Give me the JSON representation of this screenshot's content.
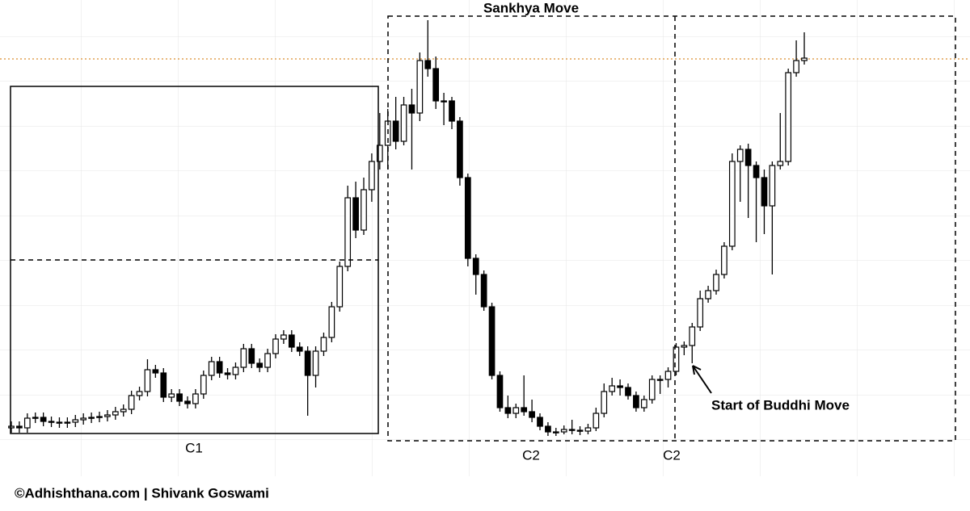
{
  "chart_data": {
    "type": "candlestick",
    "title": "Sankhya Move",
    "up_color": "#ffffff",
    "down_color": "#000000",
    "edge_color": "#000000",
    "ylim": [
      0,
      550
    ],
    "price_line": {
      "value": 477,
      "color": "#e0a050"
    },
    "open": [
      20,
      22,
      20,
      32,
      33,
      28,
      27,
      26,
      27,
      30,
      32,
      33,
      34,
      36,
      40,
      43,
      60,
      65,
      92,
      88,
      58,
      62,
      53,
      50,
      62,
      85,
      102,
      88,
      86,
      95,
      118,
      100,
      95,
      112,
      130,
      135,
      120,
      115,
      85,
      115,
      132,
      170,
      220,
      305,
      265,
      315,
      350,
      370,
      400,
      375,
      420,
      410,
      475,
      465,
      425,
      425,
      400,
      330,
      230,
      210,
      170,
      85,
      45,
      38,
      45,
      40,
      33,
      22,
      15,
      15,
      18,
      17,
      16,
      20,
      38,
      65,
      72,
      70,
      60,
      45,
      55,
      80,
      80,
      90,
      120,
      122,
      145,
      180,
      190,
      210,
      245,
      350,
      365,
      345,
      330,
      295,
      345,
      350,
      460,
      475
    ],
    "high": [
      28,
      28,
      38,
      39,
      39,
      34,
      33,
      33,
      36,
      38,
      39,
      40,
      42,
      46,
      49,
      66,
      71,
      105,
      98,
      94,
      68,
      68,
      59,
      68,
      91,
      108,
      108,
      94,
      101,
      124,
      124,
      106,
      118,
      136,
      141,
      141,
      126,
      121,
      121,
      138,
      176,
      226,
      320,
      325,
      330,
      360,
      410,
      415,
      430,
      430,
      440,
      485,
      525,
      480,
      435,
      430,
      405,
      335,
      235,
      215,
      175,
      90,
      60,
      50,
      85,
      55,
      38,
      27,
      20,
      23,
      30,
      22,
      25,
      45,
      75,
      82,
      80,
      75,
      65,
      60,
      85,
      85,
      95,
      125,
      127,
      150,
      190,
      196,
      216,
      250,
      360,
      370,
      372,
      350,
      340,
      350,
      410,
      465,
      500,
      510
    ],
    "low": [
      14,
      14,
      14,
      26,
      22,
      21,
      20,
      20,
      21,
      24,
      26,
      27,
      28,
      30,
      34,
      37,
      54,
      59,
      82,
      52,
      52,
      47,
      44,
      44,
      56,
      79,
      82,
      80,
      80,
      89,
      94,
      89,
      89,
      106,
      124,
      114,
      109,
      35,
      70,
      109,
      126,
      164,
      214,
      255,
      259,
      300,
      340,
      340,
      365,
      370,
      340,
      400,
      455,
      415,
      395,
      390,
      320,
      220,
      185,
      165,
      80,
      40,
      32,
      32,
      35,
      27,
      17,
      10,
      10,
      12,
      12,
      11,
      12,
      16,
      33,
      60,
      60,
      55,
      40,
      40,
      50,
      62,
      70,
      85,
      110,
      100,
      140,
      175,
      185,
      205,
      240,
      300,
      280,
      250,
      260,
      210,
      340,
      345,
      455,
      470
    ],
    "close": [
      22,
      20,
      32,
      33,
      28,
      27,
      26,
      27,
      30,
      32,
      33,
      34,
      36,
      40,
      43,
      60,
      65,
      92,
      88,
      58,
      62,
      53,
      50,
      62,
      85,
      102,
      88,
      86,
      95,
      118,
      100,
      95,
      112,
      130,
      135,
      120,
      115,
      85,
      115,
      132,
      170,
      220,
      305,
      265,
      315,
      350,
      370,
      400,
      375,
      420,
      410,
      475,
      465,
      425,
      425,
      400,
      330,
      230,
      210,
      170,
      85,
      45,
      38,
      45,
      40,
      33,
      22,
      15,
      15,
      18,
      17,
      16,
      20,
      38,
      65,
      72,
      70,
      60,
      45,
      55,
      80,
      80,
      90,
      120,
      122,
      145,
      180,
      190,
      210,
      245,
      350,
      365,
      345,
      330,
      295,
      345,
      350,
      460,
      475,
      478
    ],
    "annotations": [
      "C1",
      "C2",
      "C2",
      "Start of Buddhi Move"
    ]
  },
  "footer": "©Adhishthana.com | Shivank Goswami"
}
